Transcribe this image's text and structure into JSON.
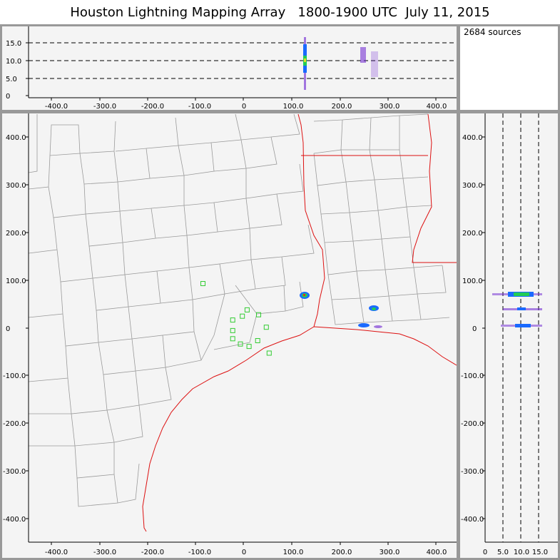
{
  "title": "Houston Lightning Mapping Array   1800-1900 UTC  July 11, 2015",
  "sources_label": "2684 sources",
  "top_panel": {
    "y_ticks": [
      "15.0",
      "10.0",
      "5.0",
      "0"
    ],
    "x_ticks": [
      "-400.0",
      "-300.0",
      "-200.0",
      "-100.0",
      "0",
      "100.0",
      "200.0",
      "300.0",
      "400.0"
    ]
  },
  "map_panel": {
    "y_ticks": [
      "400.0",
      "300.0",
      "200.0",
      "100.0",
      "0",
      "-100.0",
      "-200.0",
      "-300.0",
      "-400.0"
    ],
    "x_ticks": [
      "-400.0",
      "-300.0",
      "-200.0",
      "-100.0",
      "0",
      "100.0",
      "200.0",
      "300.0",
      "400.0"
    ]
  },
  "right_panel": {
    "y_ticks": [
      "400.0",
      "300.0",
      "200.0",
      "100.0",
      "0",
      "-100.0",
      "-200.0",
      "-300.0",
      "-400.0"
    ],
    "x_ticks": [
      "0",
      "5.0",
      "10.0",
      "15.0"
    ]
  },
  "colors": {
    "panel_bg": "#f4f4f4",
    "frame": "#999999",
    "county_lines": "#9a9a9a",
    "state_coast_lines": "#dd1111",
    "stations": "#33cc33",
    "sources_low": "#6a1fd0",
    "sources_mid": "#1a6aff",
    "sources_high": "#22cc55"
  },
  "stations_km": [
    [
      -84,
      93
    ],
    [
      -22,
      17
    ],
    [
      -2,
      25
    ],
    [
      8,
      38
    ],
    [
      32,
      28
    ],
    [
      48,
      2
    ],
    [
      -22,
      -22
    ],
    [
      -22,
      -5
    ],
    [
      -6,
      -33
    ],
    [
      12,
      -38
    ],
    [
      30,
      -26
    ],
    [
      54,
      -52
    ]
  ],
  "source_clusters_km": [
    {
      "x": 128,
      "y": 66,
      "z": 10
    },
    {
      "x": 275,
      "y": 42,
      "z": 10
    },
    {
      "x": 255,
      "y": 5,
      "z": 10
    }
  ]
}
